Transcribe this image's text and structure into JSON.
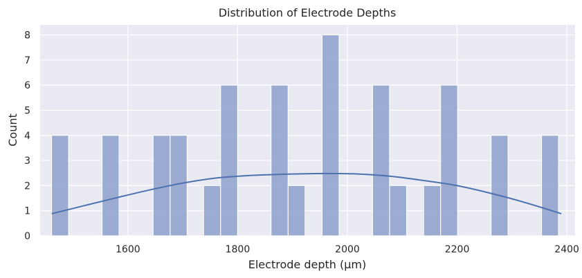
{
  "chart_data": {
    "type": "bar",
    "title": "Distribution of Electrode Depths",
    "xlabel": "Electrode depth (µm)",
    "ylabel": "Count",
    "xlim": [
      1440,
      2415
    ],
    "ylim": [
      0,
      8.4
    ],
    "xticks": [
      1600,
      1800,
      2000,
      2200,
      2400
    ],
    "yticks": [
      0,
      1,
      2,
      3,
      4,
      5,
      6,
      7,
      8
    ],
    "bin_width": 30.8,
    "bins": [
      {
        "x0": 1461,
        "count": 4
      },
      {
        "x0": 1553,
        "count": 4
      },
      {
        "x0": 1646,
        "count": 4
      },
      {
        "x0": 1677,
        "count": 4
      },
      {
        "x0": 1738,
        "count": 2
      },
      {
        "x0": 1769,
        "count": 6
      },
      {
        "x0": 1861,
        "count": 6
      },
      {
        "x0": 1892,
        "count": 2
      },
      {
        "x0": 1954,
        "count": 8
      },
      {
        "x0": 2046,
        "count": 6
      },
      {
        "x0": 2077,
        "count": 2
      },
      {
        "x0": 2139,
        "count": 2
      },
      {
        "x0": 2170,
        "count": 6
      },
      {
        "x0": 2262,
        "count": 4
      },
      {
        "x0": 2354,
        "count": 4
      }
    ],
    "kde": {
      "x": [
        1461,
        1520,
        1580,
        1640,
        1700,
        1760,
        1820,
        1880,
        1940,
        1980,
        2020,
        2080,
        2140,
        2200,
        2260,
        2320,
        2390
      ],
      "y": [
        0.88,
        1.2,
        1.52,
        1.83,
        2.1,
        2.3,
        2.4,
        2.45,
        2.48,
        2.48,
        2.46,
        2.37,
        2.2,
        2.0,
        1.7,
        1.35,
        0.88
      ]
    },
    "grid": true,
    "bar_color": "#8da0cb",
    "line_color": "#4c72b0",
    "background_color": "#eaeaf2"
  }
}
